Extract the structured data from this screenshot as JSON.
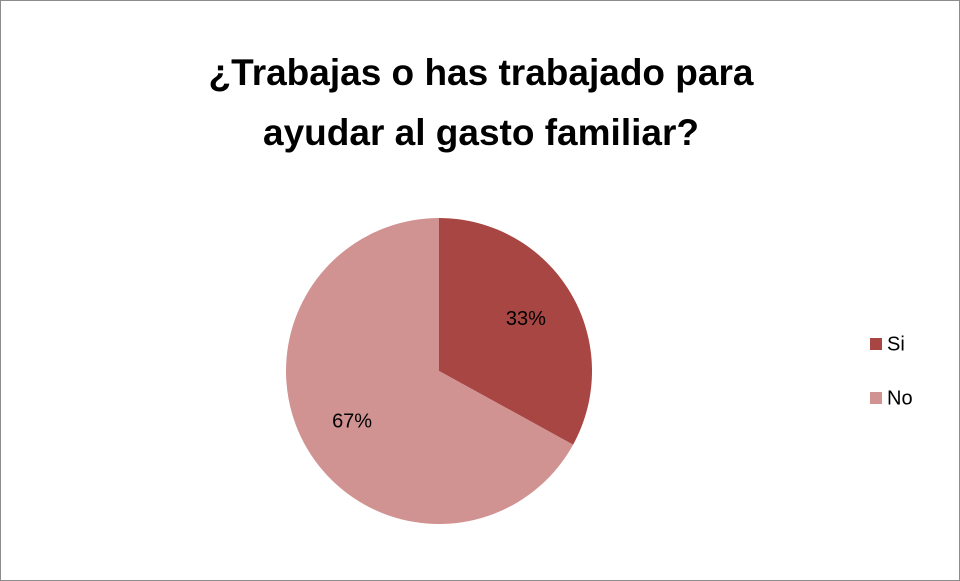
{
  "chart_data": {
    "type": "pie",
    "title": "¿Trabajas o has trabajado para ayudar al gasto familiar?",
    "categories": [
      "Si",
      "No"
    ],
    "values": [
      33,
      67
    ],
    "value_labels": [
      "33%",
      "67%"
    ],
    "colors": [
      "#a84644",
      "#d19392"
    ],
    "legend": "right"
  }
}
